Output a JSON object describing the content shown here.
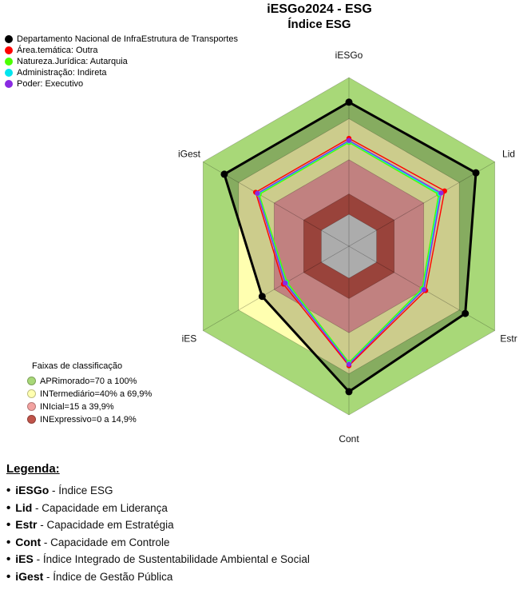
{
  "title": {
    "line1": "iESGo2024 - ESG",
    "line2": "Índice ESG"
  },
  "series_legend": [
    {
      "label": "Departamento Nacional de InfraEstrutura de Transportes",
      "color": "#000000"
    },
    {
      "label": "Área.temática: Outra",
      "color": "#ff0000"
    },
    {
      "label": "Natureza.Jurídica: Autarquia",
      "color": "#4cff00"
    },
    {
      "label": "Administração: Indireta",
      "color": "#00e5ee"
    },
    {
      "label": "Poder: Executivo",
      "color": "#8a2be2"
    }
  ],
  "bands_legend": {
    "title": "Faixas de classificação",
    "items": [
      {
        "label": "APRimorado=70 a 100%",
        "color": "#a8d878"
      },
      {
        "label": "INTermediário=40% a 69,9%",
        "color": "#ffffb0"
      },
      {
        "label": "INIcial=15 a 39,9%",
        "color": "#f2a2a0"
      },
      {
        "label": "INExpressivo=0 a 14,9%",
        "color": "#c0544a"
      }
    ]
  },
  "chart_data": {
    "type": "radar",
    "title": "iESGo2024 - ESG / Índice ESG",
    "axes": [
      "iESGo",
      "Lid",
      "Estr",
      "Cont",
      "iES",
      "iGest"
    ],
    "scale": {
      "min": 0,
      "max": 100
    },
    "bands": [
      {
        "name": "APRimorado",
        "from": 70,
        "to": 100,
        "color": "#a8d878"
      },
      {
        "name": "INTermediario",
        "from": 40,
        "to": 69.9,
        "color": "#ffffb0"
      },
      {
        "name": "INIcial",
        "from": 15,
        "to": 39.9,
        "color": "#f2a2a0"
      },
      {
        "name": "INExpressivo",
        "from": 0,
        "to": 14.9,
        "color": "#c0544a"
      }
    ],
    "center_color": "#d8d8d8",
    "series": [
      {
        "name": "Departamento Nacional de InfraEstrutura de Transportes",
        "color": "#000000",
        "emphasis": true,
        "values": [
          82,
          84,
          75,
          83,
          50,
          82
        ]
      },
      {
        "name": "Área.temática: Outra",
        "color": "#ff0000",
        "values": [
          55.5,
          57.5,
          41.5,
          64,
          32,
          55.5
        ]
      },
      {
        "name": "Natureza.Jurídica: Autarquia",
        "color": "#4cff00",
        "values": [
          52.5,
          52.5,
          38.5,
          61.5,
          29,
          52.5
        ]
      },
      {
        "name": "Administração: Indireta",
        "color": "#00e5ee",
        "values": [
          53.5,
          53.5,
          39.5,
          62.5,
          30,
          53.5
        ]
      },
      {
        "name": "Poder: Executivo",
        "color": "#8a2be2",
        "values": [
          54,
          54.5,
          40,
          63,
          30.5,
          54
        ]
      }
    ],
    "legend_position": "top-left",
    "grid": "hexagonal"
  },
  "legend_bottom": {
    "heading": "Legenda:",
    "items": [
      {
        "term": "iESGo",
        "desc": "Índice ESG"
      },
      {
        "term": "Lid",
        "desc": "Capacidade em Liderança"
      },
      {
        "term": "Estr",
        "desc": "Capacidade em Estratégia"
      },
      {
        "term": "Cont",
        "desc": "Capacidade em Controle"
      },
      {
        "term": "iES",
        "desc": "Índice Integrado de Sustentabilidade Ambiental e Social"
      },
      {
        "term": "iGest",
        "desc": "Índice de Gestão Pública"
      }
    ]
  }
}
